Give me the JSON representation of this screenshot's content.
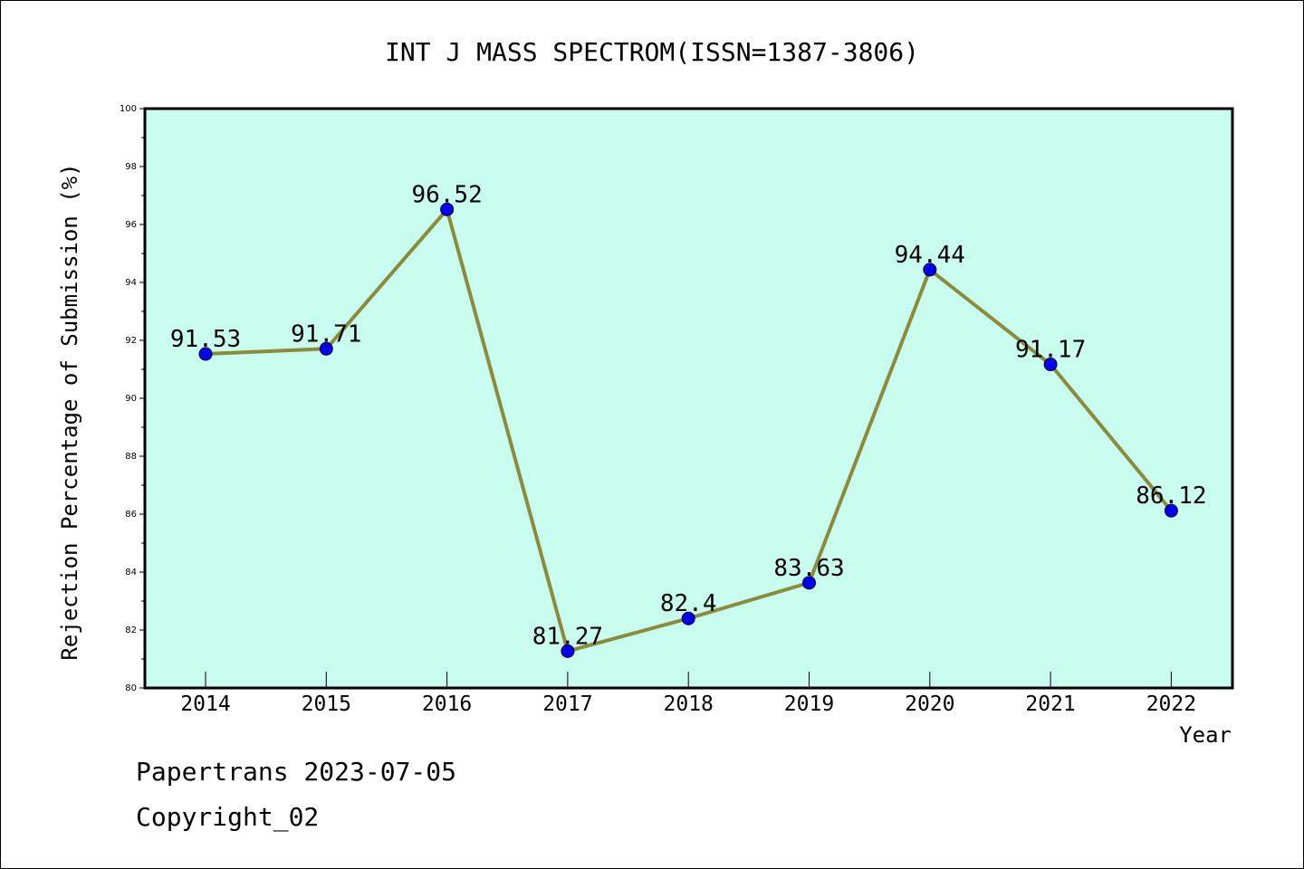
{
  "chart_data": {
    "type": "line",
    "title": "INT J MASS SPECTROM(ISSN=1387-3806)",
    "xlabel": "Year",
    "ylabel": "Rejection Percentage of Submission (%)",
    "categories": [
      "2014",
      "2015",
      "2016",
      "2017",
      "2018",
      "2019",
      "2020",
      "2021",
      "2022"
    ],
    "series": [
      {
        "values": [
          91.53,
          91.71,
          96.52,
          81.27,
          82.4,
          83.63,
          94.44,
          91.17,
          86.12
        ]
      }
    ],
    "data_labels": [
      "91.53",
      "91.71",
      "96.52",
      "81.27",
      "82.4",
      "83.63",
      "94.44",
      "91.17",
      "86.12"
    ],
    "ylim": [
      80,
      100
    ],
    "yticks": [
      "80",
      "82",
      "84",
      "86",
      "88",
      "90",
      "92",
      "94",
      "96",
      "98",
      "100"
    ],
    "grid": false,
    "colors": {
      "plot_background": "#c8fcee",
      "line": "#8b8b3a",
      "marker": "#0000ee"
    }
  },
  "footer": {
    "line1": "Papertrans 2023-07-05",
    "line2": "Copyright_02"
  }
}
